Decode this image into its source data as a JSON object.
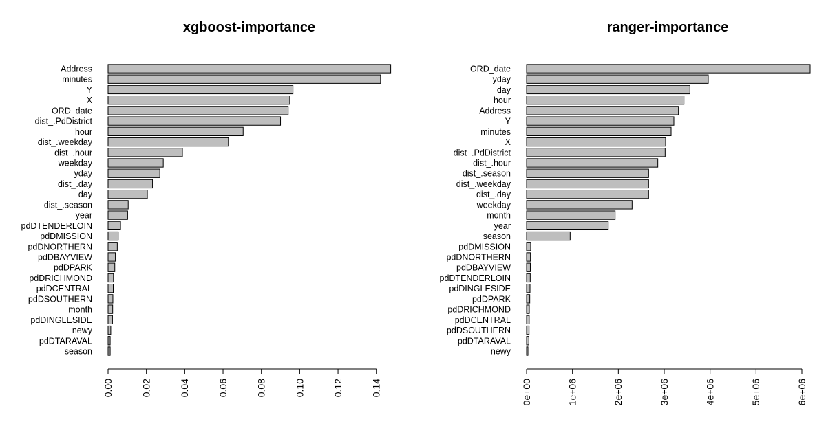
{
  "chart_data": [
    {
      "type": "bar",
      "orientation": "horizontal",
      "title": "xgboost-importance",
      "categories": [
        "Address",
        "minutes",
        "Y",
        "X",
        "ORD_date",
        "dist_.PdDistrict",
        "hour",
        "dist_.weekday",
        "dist_.hour",
        "weekday",
        "yday",
        "dist_.day",
        "day",
        "dist_.season",
        "year",
        "pdDTENDERLOIN",
        "pdDMISSION",
        "pdDNORTHERN",
        "pdDBAYVIEW",
        "pdDPARK",
        "pdDRICHMOND",
        "pdDCENTRAL",
        "pdDSOUTHERN",
        "month",
        "pdDINGLESIDE",
        "newy",
        "pdDTARAVAL",
        "season"
      ],
      "values": [
        0.1475,
        0.1422,
        0.0965,
        0.0948,
        0.094,
        0.09,
        0.0705,
        0.0628,
        0.0388,
        0.0288,
        0.027,
        0.0232,
        0.0205,
        0.0105,
        0.0102,
        0.0065,
        0.0053,
        0.0048,
        0.0038,
        0.0035,
        0.0028,
        0.0027,
        0.0025,
        0.0024,
        0.0023,
        0.0014,
        0.0011,
        0.0011
      ],
      "ticks": [
        0.0,
        0.02,
        0.04,
        0.06,
        0.08,
        0.1,
        0.12,
        0.14
      ],
      "tick_labels": [
        "0.00",
        "0.02",
        "0.04",
        "0.06",
        "0.08",
        "0.10",
        "0.12",
        "0.14"
      ],
      "xlim": [
        0,
        0.148
      ]
    },
    {
      "type": "bar",
      "orientation": "horizontal",
      "title": "ranger-importance",
      "categories": [
        "ORD_date",
        "yday",
        "day",
        "hour",
        "Address",
        "Y",
        "minutes",
        "X",
        "dist_.PdDistrict",
        "dist_.hour",
        "dist_.season",
        "dist_.weekday",
        "dist_.day",
        "weekday",
        "month",
        "year",
        "season",
        "pdDMISSION",
        "pdDNORTHERN",
        "pdDBAYVIEW",
        "pdDTENDERLOIN",
        "pdDINGLESIDE",
        "pdDPARK",
        "pdDRICHMOND",
        "pdDCENTRAL",
        "pdDSOUTHERN",
        "pdDTARAVAL",
        "newy"
      ],
      "values": [
        6180000,
        3960000,
        3560000,
        3430000,
        3310000,
        3210000,
        3150000,
        3030000,
        3020000,
        2860000,
        2660000,
        2660000,
        2660000,
        2300000,
        1930000,
        1780000,
        950000,
        90000,
        85000,
        82000,
        80000,
        75000,
        70000,
        60000,
        58000,
        55000,
        50000,
        30000
      ],
      "ticks": [
        0,
        1000000,
        2000000,
        3000000,
        4000000,
        5000000,
        6000000
      ],
      "tick_labels": [
        "0e+00",
        "1e+06",
        "2e+06",
        "3e+06",
        "4e+06",
        "5e+06",
        "6e+06"
      ],
      "xlim": [
        0,
        6180000
      ]
    }
  ]
}
